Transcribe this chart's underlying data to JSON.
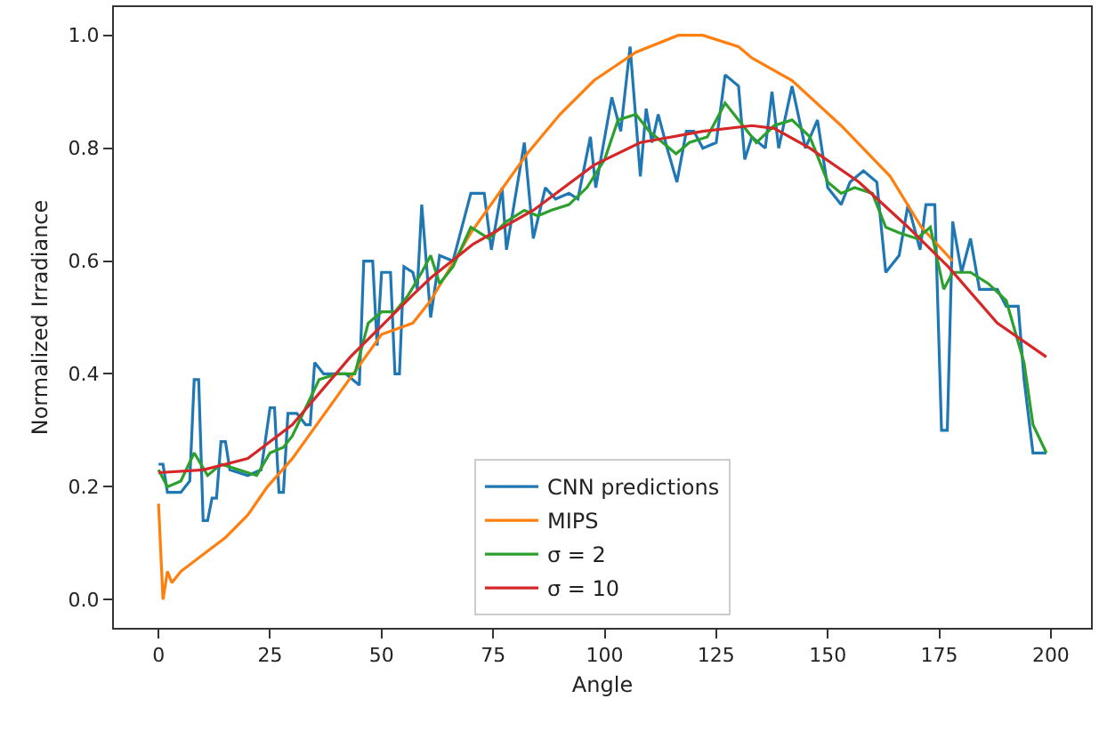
{
  "chart_data": {
    "type": "line",
    "xlabel": "Angle",
    "ylabel": "Normalized Irradiance",
    "xlim": [
      -10,
      209
    ],
    "ylim": [
      -0.05,
      1.05
    ],
    "xticks": [
      0,
      25,
      50,
      75,
      100,
      125,
      150,
      175,
      200
    ],
    "yticks": [
      {
        "value": 0,
        "label": "0.0"
      },
      {
        "value": 0.2,
        "label": "0.2"
      },
      {
        "value": 0.4,
        "label": "0.4"
      },
      {
        "value": 0.6,
        "label": "0.6"
      },
      {
        "value": 0.8,
        "label": "0.8"
      },
      {
        "value": 1,
        "label": "1.0"
      }
    ],
    "grid": false,
    "legend": "bottom",
    "marker": "none",
    "line_style": "solid",
    "series": [
      {
        "name": "CNN predictions",
        "color": "#1f77b4",
        "x": [
          0,
          1,
          2,
          5,
          6,
          7,
          8,
          9,
          10,
          11,
          12,
          13,
          14,
          15,
          16,
          20,
          23,
          25,
          26,
          27,
          28,
          29,
          31,
          33,
          34,
          35,
          36,
          37,
          42,
          45,
          46,
          48,
          49,
          50,
          52,
          53,
          54,
          55,
          57,
          58,
          59,
          61,
          63,
          66,
          70,
          73,
          74.6,
          77,
          78,
          82,
          84,
          86.7,
          89,
          92,
          94,
          96.8,
          98,
          101.6,
          103.6,
          105.7,
          108,
          109.3,
          110.6,
          112,
          114,
          116.2,
          118.3,
          120,
          122,
          125,
          127,
          130,
          131.4,
          133,
          136,
          137.5,
          139,
          142,
          145,
          147.7,
          150,
          153,
          155,
          158,
          161,
          163,
          166,
          168,
          170.7,
          172,
          174,
          175.5,
          176.8,
          178,
          180,
          182,
          184,
          188,
          190,
          192.7,
          194,
          196,
          199
        ],
        "values": [
          0.24,
          0.24,
          0.19,
          0.19,
          0.2,
          0.21,
          0.39,
          0.39,
          0.14,
          0.14,
          0.18,
          0.18,
          0.28,
          0.28,
          0.23,
          0.22,
          0.23,
          0.34,
          0.34,
          0.19,
          0.19,
          0.33,
          0.33,
          0.31,
          0.31,
          0.42,
          0.41,
          0.4,
          0.4,
          0.38,
          0.6,
          0.6,
          0.45,
          0.58,
          0.58,
          0.4,
          0.4,
          0.59,
          0.58,
          0.55,
          0.7,
          0.5,
          0.61,
          0.6,
          0.72,
          0.72,
          0.62,
          0.73,
          0.62,
          0.81,
          0.64,
          0.73,
          0.71,
          0.72,
          0.71,
          0.82,
          0.73,
          0.89,
          0.83,
          0.98,
          0.75,
          0.87,
          0.81,
          0.86,
          0.8,
          0.74,
          0.83,
          0.83,
          0.8,
          0.81,
          0.93,
          0.91,
          0.78,
          0.82,
          0.8,
          0.9,
          0.8,
          0.91,
          0.8,
          0.85,
          0.73,
          0.7,
          0.74,
          0.76,
          0.74,
          0.58,
          0.61,
          0.7,
          0.62,
          0.7,
          0.7,
          0.3,
          0.3,
          0.67,
          0.58,
          0.64,
          0.55,
          0.55,
          0.52,
          0.52,
          0.39,
          0.26,
          0.26
        ]
      },
      {
        "name": "MIPS",
        "color": "#ff7f0e",
        "x": [
          0,
          1,
          2,
          3,
          5,
          10,
          15,
          20,
          24.4,
          30,
          40,
          50,
          57,
          61,
          70,
          82.6,
          90,
          97.6,
          107,
          116.5,
          122,
          130,
          133,
          142,
          153,
          164,
          171,
          178
        ],
        "values": [
          0.17,
          0,
          0.05,
          0.03,
          0.05,
          0.08,
          0.11,
          0.15,
          0.2,
          0.25,
          0.36,
          0.47,
          0.49,
          0.53,
          0.65,
          0.79,
          0.86,
          0.92,
          0.97,
          1,
          1,
          0.98,
          0.96,
          0.92,
          0.84,
          0.75,
          0.66,
          0.6
        ]
      },
      {
        "name": "σ = 2",
        "color": "#2ca02c",
        "x": [
          0,
          2,
          5,
          8,
          11,
          14,
          18,
          22,
          25,
          28,
          30,
          33,
          36,
          40,
          44,
          47,
          50,
          53,
          56,
          59,
          61,
          63,
          66,
          70,
          74,
          78,
          82,
          85,
          88,
          92,
          96,
          100,
          103,
          107,
          110,
          113,
          116,
          119,
          123,
          127,
          130,
          134,
          138,
          142,
          146,
          150,
          153,
          156,
          160,
          163,
          166,
          170,
          173,
          176,
          178,
          182,
          186,
          190,
          194,
          196,
          199
        ],
        "values": [
          0.23,
          0.2,
          0.21,
          0.26,
          0.22,
          0.24,
          0.23,
          0.22,
          0.26,
          0.27,
          0.29,
          0.34,
          0.39,
          0.4,
          0.4,
          0.49,
          0.51,
          0.51,
          0.54,
          0.58,
          0.61,
          0.56,
          0.59,
          0.66,
          0.64,
          0.67,
          0.69,
          0.68,
          0.69,
          0.7,
          0.73,
          0.78,
          0.85,
          0.86,
          0.83,
          0.81,
          0.79,
          0.81,
          0.82,
          0.88,
          0.85,
          0.81,
          0.84,
          0.85,
          0.82,
          0.74,
          0.72,
          0.73,
          0.72,
          0.66,
          0.65,
          0.64,
          0.66,
          0.55,
          0.58,
          0.58,
          0.56,
          0.53,
          0.42,
          0.31,
          0.26
        ]
      },
      {
        "name": "σ = 10",
        "color": "#d62728",
        "x": [
          0,
          10,
          20,
          30,
          43,
          57,
          61,
          70.5,
          84,
          97.6,
          108,
          122,
          133,
          138,
          146,
          157,
          168,
          177,
          188,
          199
        ],
        "values": [
          0.225,
          0.23,
          0.25,
          0.31,
          0.43,
          0.54,
          0.57,
          0.63,
          0.69,
          0.77,
          0.81,
          0.83,
          0.84,
          0.835,
          0.8,
          0.74,
          0.66,
          0.59,
          0.49,
          0.43
        ]
      }
    ]
  }
}
